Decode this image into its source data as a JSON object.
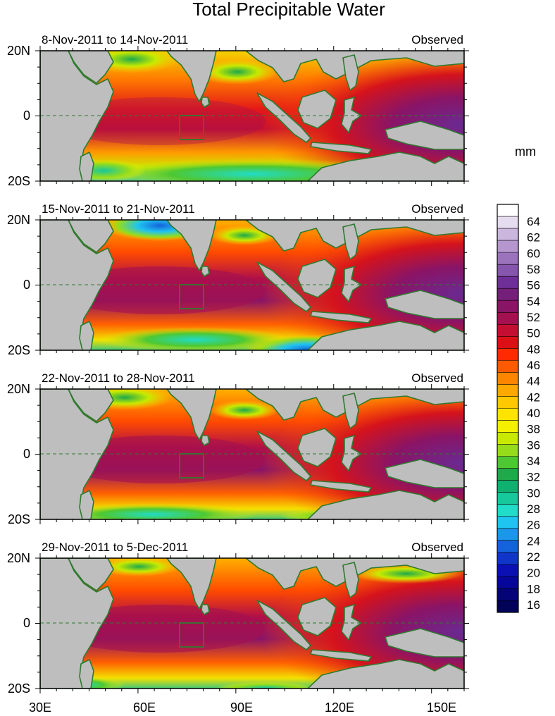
{
  "title": "Total Precipitable Water",
  "units": "mm",
  "panels": [
    {
      "period": "8-Nov-2011 to 14-Nov-2011",
      "tag": "Observed"
    },
    {
      "period": "15-Nov-2011 to 21-Nov-2011",
      "tag": "Observed"
    },
    {
      "period": "22-Nov-2011 to 28-Nov-2011",
      "tag": "Observed"
    },
    {
      "period": "29-Nov-2011 to 5-Dec-2011",
      "tag": "Observed"
    }
  ],
  "lat_labels": [
    "20N",
    "0",
    "20S"
  ],
  "lon_labels": [
    "30E",
    "60E",
    "90E",
    "120E",
    "150E"
  ],
  "colorbar": {
    "labels": [
      "64",
      "62",
      "60",
      "58",
      "56",
      "54",
      "52",
      "50",
      "48",
      "46",
      "44",
      "42",
      "40",
      "38",
      "36",
      "34",
      "32",
      "30",
      "28",
      "26",
      "24",
      "22",
      "20",
      "18",
      "16"
    ],
    "colors": [
      "#ffffff",
      "#e6dcef",
      "#cbb6de",
      "#b596cf",
      "#9b73bd",
      "#8655ad",
      "#6f2f98",
      "#741f7a",
      "#8a1466",
      "#a41050",
      "#c40f32",
      "#dc0f16",
      "#ff2a00",
      "#ff5a00",
      "#ff8400",
      "#ffa800",
      "#ffc800",
      "#ffe400",
      "#f4f000",
      "#c8ea00",
      "#96dc1a",
      "#4ec832",
      "#1ea94a",
      "#10b070",
      "#16c89c",
      "#20dcc8",
      "#20c4f0",
      "#1a96ea",
      "#1462dc",
      "#0f36c8",
      "#0a10b4",
      "#06069a",
      "#040478",
      "#020258"
    ]
  }
}
